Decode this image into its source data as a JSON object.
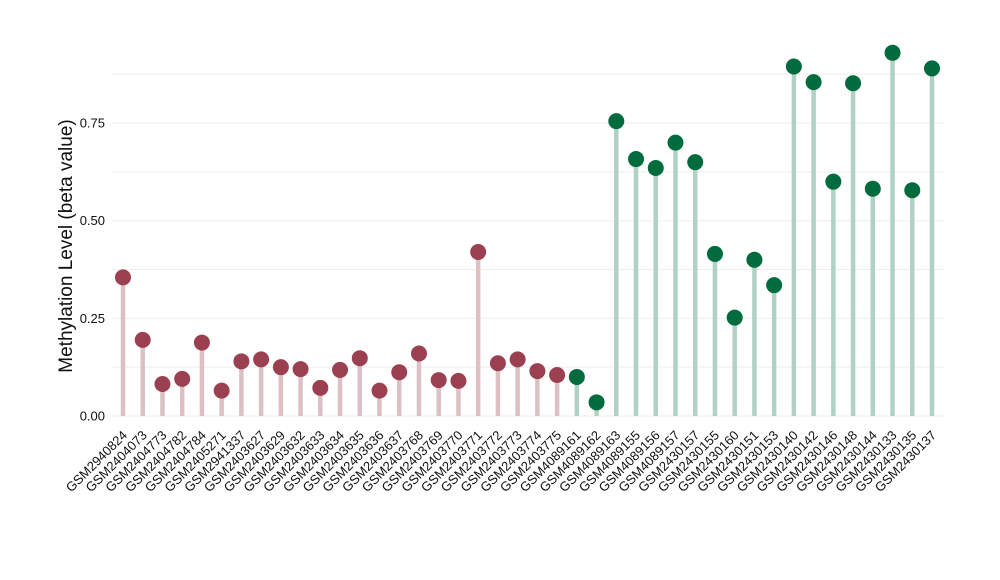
{
  "chart_data": {
    "type": "lollipop",
    "title": "",
    "xlabel": "",
    "ylabel": "Methylation Level (beta value)",
    "ylim": [
      0,
      0.95
    ],
    "yticks": [
      "0.00",
      "0.25",
      "0.50",
      "0.75"
    ],
    "ytick_values": [
      0,
      0.25,
      0.5,
      0.75
    ],
    "grid": true,
    "legend": "none",
    "colors": {
      "group_a": "#9b4050",
      "group_a_stem": "#dcc0c6",
      "group_b": "#006b3c",
      "group_b_stem": "#b2d1c6",
      "grid": "#eeeeee"
    },
    "categories": [
      "GSM2940824",
      "GSM2404073",
      "GSM2404773",
      "GSM2404782",
      "GSM2404784",
      "GSM2405271",
      "GSM2941337",
      "GSM2403627",
      "GSM2403629",
      "GSM2403632",
      "GSM2403633",
      "GSM2403634",
      "GSM2403635",
      "GSM2403636",
      "GSM2403637",
      "GSM2403768",
      "GSM2403769",
      "GSM2403770",
      "GSM2403771",
      "GSM2403772",
      "GSM2403773",
      "GSM2403774",
      "GSM2403775",
      "GSM4089161",
      "GSM4089162",
      "GSM4089163",
      "GSM4089155",
      "GSM4089156",
      "GSM4089157",
      "GSM2430157",
      "GSM2430155",
      "GSM2430160",
      "GSM2430151",
      "GSM2430153",
      "GSM2430140",
      "GSM2430142",
      "GSM2430146",
      "GSM2430148",
      "GSM2430144",
      "GSM2430133",
      "GSM2430135",
      "GSM2430137"
    ],
    "values": [
      0.355,
      0.195,
      0.082,
      0.095,
      0.188,
      0.065,
      0.14,
      0.145,
      0.125,
      0.12,
      0.072,
      0.118,
      0.148,
      0.065,
      0.112,
      0.16,
      0.092,
      0.09,
      0.42,
      0.135,
      0.145,
      0.115,
      0.105,
      0.1,
      0.035,
      0.755,
      0.658,
      0.635,
      0.7,
      0.65,
      0.415,
      0.252,
      0.4,
      0.335,
      0.895,
      0.855,
      0.6,
      0.852,
      0.582,
      0.93,
      0.578,
      0.89
    ],
    "groups": [
      "a",
      "a",
      "a",
      "a",
      "a",
      "a",
      "a",
      "a",
      "a",
      "a",
      "a",
      "a",
      "a",
      "a",
      "a",
      "a",
      "a",
      "a",
      "a",
      "a",
      "a",
      "a",
      "a",
      "b",
      "b",
      "b",
      "b",
      "b",
      "b",
      "b",
      "b",
      "b",
      "b",
      "b",
      "b",
      "b",
      "b",
      "b",
      "b",
      "b",
      "b",
      "b"
    ]
  }
}
